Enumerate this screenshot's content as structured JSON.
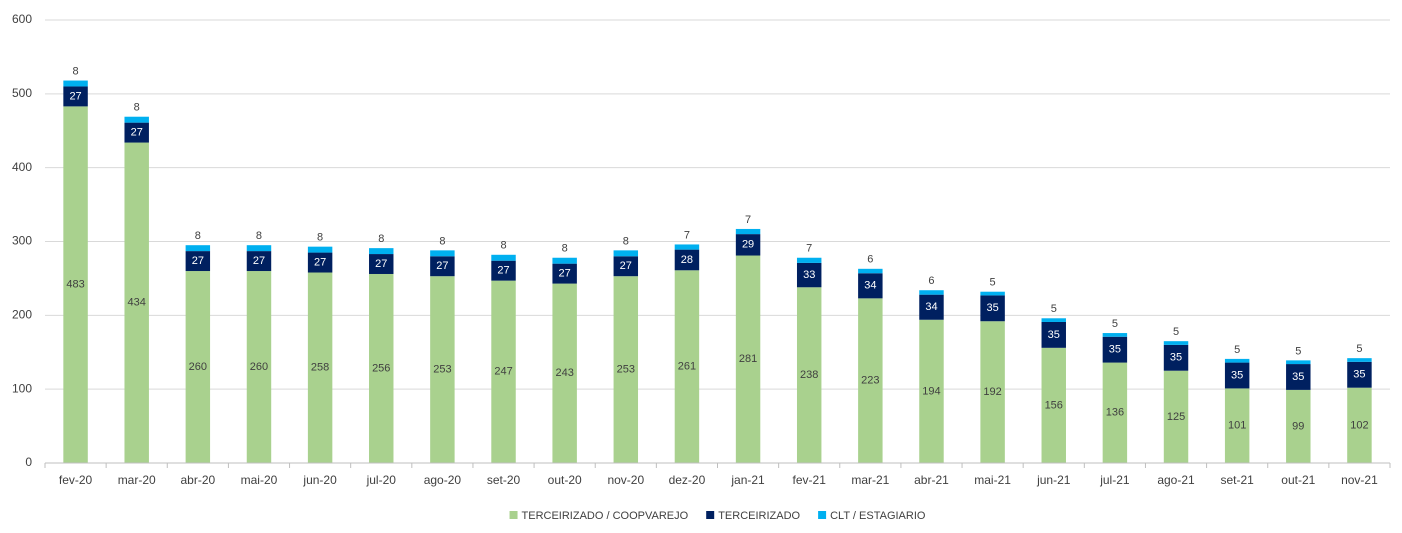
{
  "chart_data": {
    "type": "stacked_bar",
    "categories": [
      "fev-20",
      "mar-20",
      "abr-20",
      "mai-20",
      "jun-20",
      "jul-20",
      "ago-20",
      "set-20",
      "out-20",
      "nov-20",
      "dez-20",
      "jan-21",
      "fev-21",
      "mar-21",
      "abr-21",
      "mai-21",
      "jun-21",
      "jul-21",
      "ago-21",
      "set-21",
      "out-21",
      "nov-21"
    ],
    "series": [
      {
        "name": "TERCEIRIZADO / COOPVAREJO",
        "color": "#a9d18e",
        "values": [
          483,
          434,
          260,
          260,
          258,
          256,
          253,
          247,
          243,
          253,
          261,
          281,
          238,
          223,
          194,
          192,
          156,
          136,
          125,
          101,
          99,
          102
        ]
      },
      {
        "name": "TERCEIRIZADO",
        "color": "#002060",
        "values": [
          27,
          27,
          27,
          27,
          27,
          27,
          27,
          27,
          27,
          27,
          28,
          29,
          33,
          34,
          34,
          35,
          35,
          35,
          35,
          35,
          35,
          35
        ]
      },
      {
        "name": "CLT / ESTAGIARIO",
        "color": "#00b0f0",
        "values": [
          8,
          8,
          8,
          8,
          8,
          8,
          8,
          8,
          8,
          8,
          7,
          7,
          7,
          6,
          6,
          5,
          5,
          5,
          5,
          5,
          5,
          5
        ]
      }
    ],
    "ylim": [
      0,
      600
    ],
    "yticks": [
      0,
      100,
      200,
      300,
      400,
      500,
      600
    ],
    "grid": true,
    "legend": "bottom"
  }
}
